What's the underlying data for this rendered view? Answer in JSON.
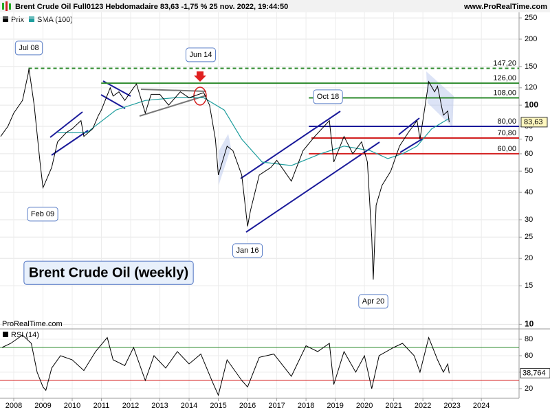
{
  "chart_data": {
    "type": "line",
    "title": "Brent Crude Oil Full0123 Hebdomadaire 83,63 -1,75 % 25 nov. 2022, 19:44:50",
    "source": "www.ProRealTime.com",
    "watermark": "ProRealTime.com",
    "panel_title": "Brent Crude Oil (weekly)",
    "log_scale": true,
    "ylim": [
      9.6,
      265
    ],
    "yticks": [
      10,
      15,
      20,
      25,
      30,
      40,
      50,
      60,
      70,
      80,
      100,
      120,
      150,
      200,
      250
    ],
    "xlim": [
      2007.53,
      2025.29
    ],
    "xticks": [
      2008,
      2009,
      2010,
      2011,
      2012,
      2013,
      2014,
      2015,
      2016,
      2017,
      2018,
      2019,
      2020,
      2021,
      2022,
      2023,
      2024
    ],
    "series": [
      {
        "name": "Prix",
        "color": "#000000",
        "x": [
          2007.55,
          2007.8,
          2008.0,
          2008.3,
          2008.5,
          2008.52,
          2008.7,
          2008.9,
          2009.0,
          2009.1,
          2009.3,
          2009.5,
          2009.8,
          2010.0,
          2010.3,
          2010.4,
          2010.7,
          2010.9,
          2011.0,
          2011.3,
          2011.4,
          2011.6,
          2011.8,
          2012.1,
          2012.2,
          2012.5,
          2012.7,
          2013.0,
          2013.3,
          2013.7,
          2014.0,
          2014.5,
          2014.7,
          2014.9,
          2015.0,
          2015.3,
          2015.5,
          2015.8,
          2016.0,
          2016.1,
          2016.4,
          2016.8,
          2017.0,
          2017.5,
          2017.9,
          2018.3,
          2018.8,
          2018.95,
          2019.3,
          2019.6,
          2019.9,
          2020.1,
          2020.25,
          2020.3,
          2020.4,
          2020.6,
          2020.9,
          2021.2,
          2021.5,
          2021.8,
          2021.9,
          2022.0,
          2022.2,
          2022.4,
          2022.5,
          2022.7,
          2022.85,
          2022.9
        ],
        "values": [
          72,
          80,
          92,
          105,
          140,
          147,
          100,
          55,
          42,
          45,
          52,
          68,
          75,
          78,
          85,
          72,
          78,
          90,
          95,
          120,
          110,
          115,
          105,
          120,
          125,
          92,
          112,
          112,
          100,
          115,
          108,
          114,
          100,
          70,
          48,
          65,
          62,
          48,
          28,
          33,
          48,
          52,
          56,
          45,
          62,
          72,
          85,
          55,
          72,
          60,
          68,
          55,
          25,
          16,
          35,
          43,
          50,
          65,
          75,
          85,
          70,
          85,
          128,
          115,
          122,
          90,
          94,
          83.63
        ]
      },
      {
        "name": "SMA (100)",
        "color": "#1f9e9e",
        "x": [
          2009.5,
          2010.5,
          2011.5,
          2012.5,
          2013.5,
          2014.5,
          2015.2,
          2015.8,
          2016.5,
          2017.5,
          2018.5,
          2019.3,
          2020.2,
          2020.8,
          2021.3,
          2021.8,
          2022.3,
          2022.9
        ],
        "values": [
          75,
          75,
          95,
          105,
          108,
          108,
          95,
          70,
          55,
          53,
          60,
          65,
          62,
          57,
          60,
          65,
          78,
          87
        ]
      }
    ],
    "levels": [
      {
        "value": 147.2,
        "label": "147,20",
        "color": "#2e8b2e",
        "dashed": true
      },
      {
        "value": 126,
        "label": "126,00",
        "color": "#2e8b2e",
        "dashed": false
      },
      {
        "value": 108,
        "label": "108,00",
        "color": "#2e8b2e",
        "dashed": false
      },
      {
        "value": 80,
        "label": "80,00",
        "color": "#1a1a9a",
        "dashed": false
      },
      {
        "value": 70.8,
        "label": "70,80",
        "color": "#d42020",
        "dashed": false
      },
      {
        "value": 60,
        "label": "60,00",
        "color": "#d42020",
        "dashed": false
      }
    ],
    "last": {
      "value": 83.63,
      "label": "83,63"
    },
    "annotations": [
      "Jul 08",
      "Feb 09",
      "Jun 14",
      "Jan 16",
      "Oct 18",
      "Apr 20"
    ],
    "rsi": {
      "name": "RSI (14)",
      "color": "#000000",
      "ylim": [
        8.3,
        91.7
      ],
      "yticks": [
        20,
        40,
        60,
        80
      ],
      "levels": [
        {
          "value": 70,
          "color": "#2e8b2e"
        },
        {
          "value": 30,
          "color": "#d42020"
        }
      ],
      "x": [
        2007.6,
        2007.9,
        2008.3,
        2008.6,
        2008.8,
        2009.0,
        2009.1,
        2009.3,
        2009.6,
        2010.0,
        2010.4,
        2010.8,
        2011.2,
        2011.4,
        2011.8,
        2012.1,
        2012.5,
        2012.8,
        2013.2,
        2013.6,
        2014.0,
        2014.4,
        2014.8,
        2015.0,
        2015.3,
        2015.8,
        2016.0,
        2016.4,
        2016.9,
        2017.5,
        2018.0,
        2018.4,
        2018.8,
        2018.95,
        2019.3,
        2019.7,
        2020.0,
        2020.25,
        2020.5,
        2021.0,
        2021.3,
        2021.7,
        2021.9,
        2022.2,
        2022.5,
        2022.7,
        2022.85,
        2022.9
      ],
      "values": [
        70,
        75,
        85,
        75,
        40,
        22,
        18,
        45,
        60,
        55,
        42,
        65,
        82,
        55,
        48,
        70,
        30,
        60,
        45,
        65,
        50,
        62,
        28,
        12,
        55,
        30,
        22,
        58,
        62,
        35,
        72,
        65,
        75,
        25,
        65,
        40,
        60,
        20,
        60,
        70,
        75,
        60,
        40,
        82,
        55,
        40,
        50,
        38.764
      ],
      "last": {
        "value": 38.764,
        "label": "38,764"
      }
    }
  }
}
